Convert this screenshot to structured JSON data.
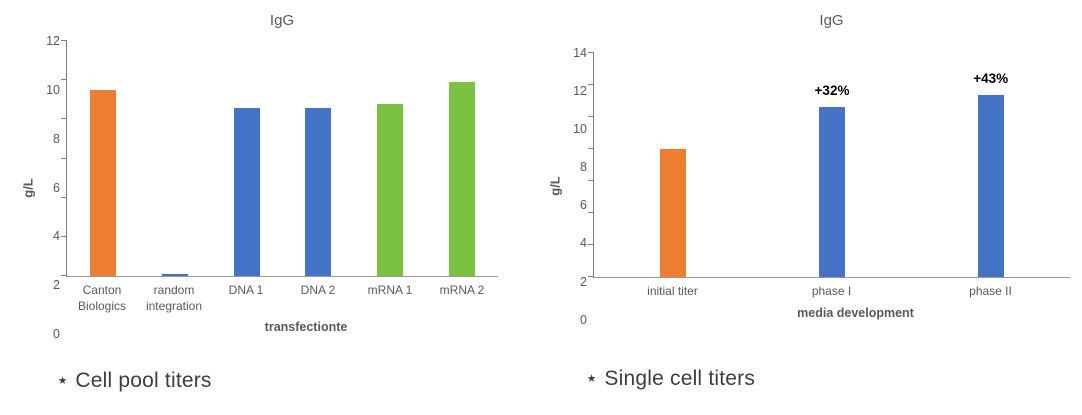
{
  "page": {
    "background": "#ffffff"
  },
  "palette": {
    "orange": "#ED7D31",
    "blue": "#4472C4",
    "green": "#7CC242"
  },
  "chart_data": [
    {
      "type": "bar",
      "title": "IgG",
      "xlabel": "transfectionte",
      "ylabel": "g/L",
      "ylim": [
        0,
        12
      ],
      "yticks": [
        0,
        2,
        4,
        6,
        8,
        10,
        12
      ],
      "grid": false,
      "legend": "none",
      "categories": [
        "Canton Biologics",
        "random integration",
        "DNA 1",
        "DNA 2",
        "mRNA 1",
        "mRNA 2"
      ],
      "values": [
        9.5,
        0.1,
        8.6,
        8.6,
        8.8,
        9.9
      ],
      "bar_colors": [
        "#ED7D31",
        "#4472C4",
        "#4472C4",
        "#4472C4",
        "#7CC242",
        "#7CC242"
      ],
      "annotations": [
        "",
        "",
        "",
        "",
        "",
        ""
      ],
      "footnote": "⋆ Cell pool titers"
    },
    {
      "type": "bar",
      "title": "IgG",
      "xlabel": "media development",
      "ylabel": "g/L",
      "ylim": [
        0,
        14
      ],
      "yticks": [
        0,
        2,
        4,
        6,
        8,
        10,
        12,
        14
      ],
      "grid": false,
      "legend": "none",
      "categories": [
        "initial titer",
        "phase I",
        "phase II"
      ],
      "values": [
        8.0,
        10.6,
        11.4
      ],
      "bar_colors": [
        "#ED7D31",
        "#4472C4",
        "#4472C4"
      ],
      "annotations": [
        "",
        "+32%",
        "+43%"
      ],
      "footnote": "⋆ Single cell titers"
    }
  ]
}
